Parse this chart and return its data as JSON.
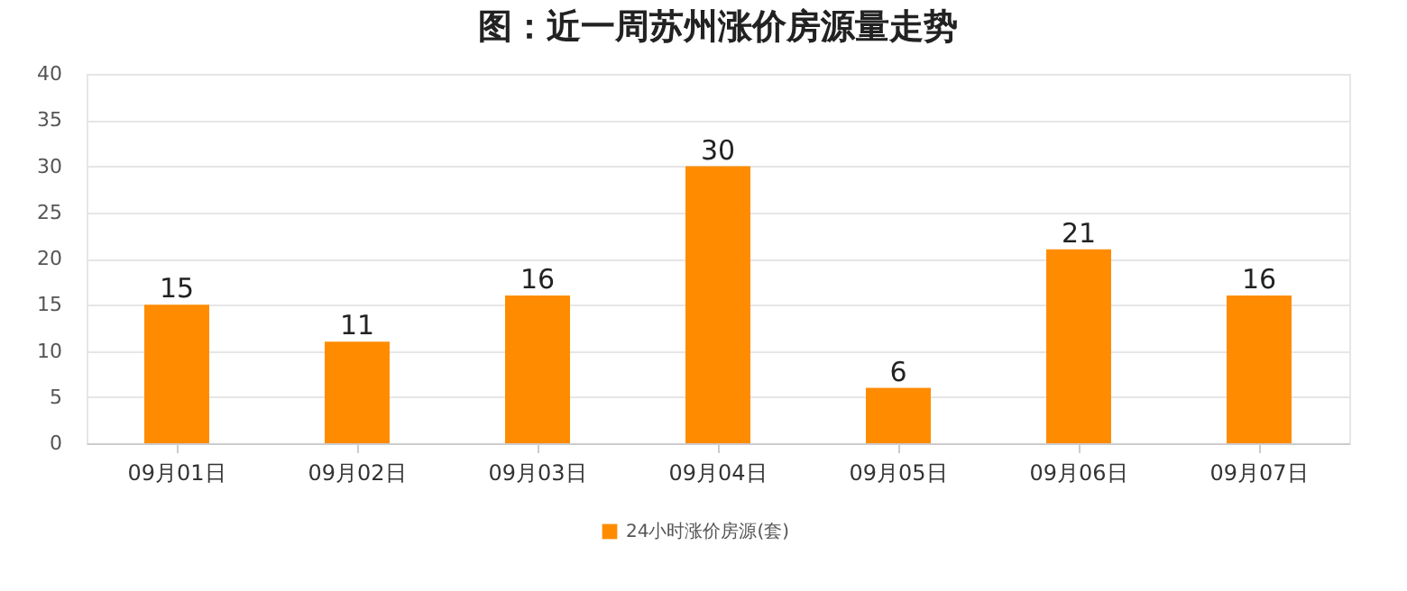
{
  "chart_data": {
    "type": "bar",
    "title": "图：近一周苏州涨价房源量走势",
    "categories": [
      "09月01日",
      "09月02日",
      "09月03日",
      "09月04日",
      "09月05日",
      "09月06日",
      "09月07日"
    ],
    "series": [
      {
        "name": "24小时涨价房源(套)",
        "color": "#ff8c00",
        "values": [
          15,
          11,
          16,
          30,
          6,
          21,
          16
        ]
      }
    ],
    "ylim": [
      0,
      40
    ],
    "yticks": [
      0,
      5,
      10,
      15,
      20,
      25,
      30,
      35,
      40
    ],
    "grid": "y",
    "legend": "bottom",
    "data_labels": true
  }
}
